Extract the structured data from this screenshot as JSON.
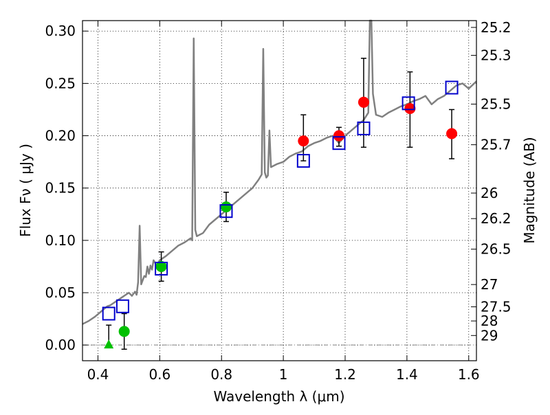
{
  "chart_data": {
    "type": "scatter",
    "title": "",
    "xlabel": "Wavelength  λ (μm)",
    "ylabel": "Flux  Fν  ( μJy )",
    "y2label": "Magnitude (AB)",
    "xlim": [
      0.35,
      1.625
    ],
    "ylim": [
      -0.015,
      0.31
    ],
    "grid": true,
    "x_ticks": [
      0.4,
      0.6,
      0.8,
      1.0,
      1.2,
      1.4,
      1.6
    ],
    "x_tick_labels": [
      "0.4",
      "0.6",
      "0.8",
      "1",
      "1.2",
      "1.4",
      "1.6"
    ],
    "y_ticks": [
      0.0,
      0.05,
      0.1,
      0.15,
      0.2,
      0.25,
      0.3
    ],
    "y_tick_labels": [
      "0.00",
      "0.05",
      "0.10",
      "0.15",
      "0.20",
      "0.25",
      "0.30"
    ],
    "y2_ticks": [
      {
        "label": "25.2",
        "flux": 0.3035
      },
      {
        "label": "25.3",
        "flux": 0.2768
      },
      {
        "label": "25.5",
        "flux": 0.2302
      },
      {
        "label": "25.7",
        "flux": 0.1914
      },
      {
        "label": "26",
        "flux": 0.1452
      },
      {
        "label": "26.2",
        "flux": 0.1208
      },
      {
        "label": "26.5",
        "flux": 0.0916
      },
      {
        "label": "27",
        "flux": 0.0578
      },
      {
        "label": "27.5",
        "flux": 0.0365
      },
      {
        "label": "28",
        "flux": 0.023
      },
      {
        "label": "29",
        "flux": 0.0091
      }
    ],
    "colors": {
      "model": "#808080",
      "red_points": "#ff0000",
      "green_points": "#00c000",
      "model_points": "#0000cc",
      "errorbar": "#000000",
      "zero_line": "#808080"
    },
    "series": [
      {
        "name": "model spectrum",
        "kind": "line",
        "x": [
          0.35,
          0.37,
          0.39,
          0.41,
          0.43,
          0.44,
          0.46,
          0.48,
          0.5,
          0.51,
          0.52,
          0.525,
          0.53,
          0.535,
          0.54,
          0.55,
          0.555,
          0.56,
          0.565,
          0.57,
          0.575,
          0.58,
          0.59,
          0.6,
          0.62,
          0.64,
          0.66,
          0.68,
          0.7,
          0.705,
          0.71,
          0.715,
          0.72,
          0.74,
          0.76,
          0.78,
          0.8,
          0.82,
          0.84,
          0.86,
          0.88,
          0.9,
          0.92,
          0.93,
          0.935,
          0.94,
          0.945,
          0.95,
          0.955,
          0.96,
          0.98,
          1.0,
          1.02,
          1.04,
          1.06,
          1.08,
          1.1,
          1.12,
          1.14,
          1.16,
          1.18,
          1.2,
          1.22,
          1.24,
          1.26,
          1.275,
          1.28,
          1.285,
          1.29,
          1.3,
          1.32,
          1.34,
          1.36,
          1.38,
          1.4,
          1.42,
          1.44,
          1.46,
          1.48,
          1.5,
          1.52,
          1.54,
          1.56,
          1.58,
          1.6,
          1.625
        ],
        "y": [
          0.02,
          0.023,
          0.027,
          0.032,
          0.037,
          0.038,
          0.042,
          0.046,
          0.05,
          0.047,
          0.051,
          0.048,
          0.06,
          0.114,
          0.058,
          0.066,
          0.065,
          0.075,
          0.068,
          0.076,
          0.072,
          0.081,
          0.076,
          0.081,
          0.085,
          0.09,
          0.095,
          0.098,
          0.102,
          0.1,
          0.293,
          0.11,
          0.104,
          0.107,
          0.115,
          0.12,
          0.125,
          0.13,
          0.135,
          0.14,
          0.145,
          0.15,
          0.158,
          0.163,
          0.283,
          0.165,
          0.16,
          0.162,
          0.205,
          0.17,
          0.173,
          0.175,
          0.18,
          0.183,
          0.185,
          0.19,
          0.193,
          0.195,
          0.198,
          0.2,
          0.193,
          0.2,
          0.205,
          0.21,
          0.215,
          0.222,
          0.31,
          0.31,
          0.24,
          0.22,
          0.218,
          0.222,
          0.225,
          0.228,
          0.23,
          0.233,
          0.235,
          0.238,
          0.23,
          0.235,
          0.238,
          0.243,
          0.248,
          0.25,
          0.245,
          0.252
        ]
      },
      {
        "name": "observed detections",
        "marker": "circle",
        "color": "#ff0000",
        "x": [
          1.065,
          1.18,
          1.26,
          1.41,
          1.545
        ],
        "y": [
          0.195,
          0.2,
          0.232,
          0.226,
          0.202
        ],
        "yerr_low": [
          0.176,
          0.19,
          0.189,
          0.189,
          0.178
        ],
        "yerr_high": [
          0.22,
          0.208,
          0.274,
          0.261,
          0.225
        ]
      },
      {
        "name": "observed optical",
        "marker": "circle",
        "color": "#00c000",
        "x": [
          0.485,
          0.605,
          0.815
        ],
        "y": [
          0.013,
          0.075,
          0.132
        ],
        "yerr_low": [
          -0.004,
          0.061,
          0.118
        ],
        "yerr_high": [
          0.03,
          0.089,
          0.146
        ]
      },
      {
        "name": "upper limit",
        "marker": "triangle",
        "color": "#00c000",
        "x": [
          0.435
        ],
        "y": [
          0.0
        ],
        "yerr_low": [
          0.0
        ],
        "yerr_high": [
          0.019
        ]
      },
      {
        "name": "model photometry",
        "marker": "square",
        "color": "#0000cc",
        "x": [
          0.435,
          0.48,
          0.605,
          0.815,
          1.065,
          1.18,
          1.26,
          1.405,
          1.545
        ],
        "y": [
          0.03,
          0.037,
          0.073,
          0.128,
          0.176,
          0.193,
          0.207,
          0.231,
          0.246
        ]
      }
    ]
  }
}
